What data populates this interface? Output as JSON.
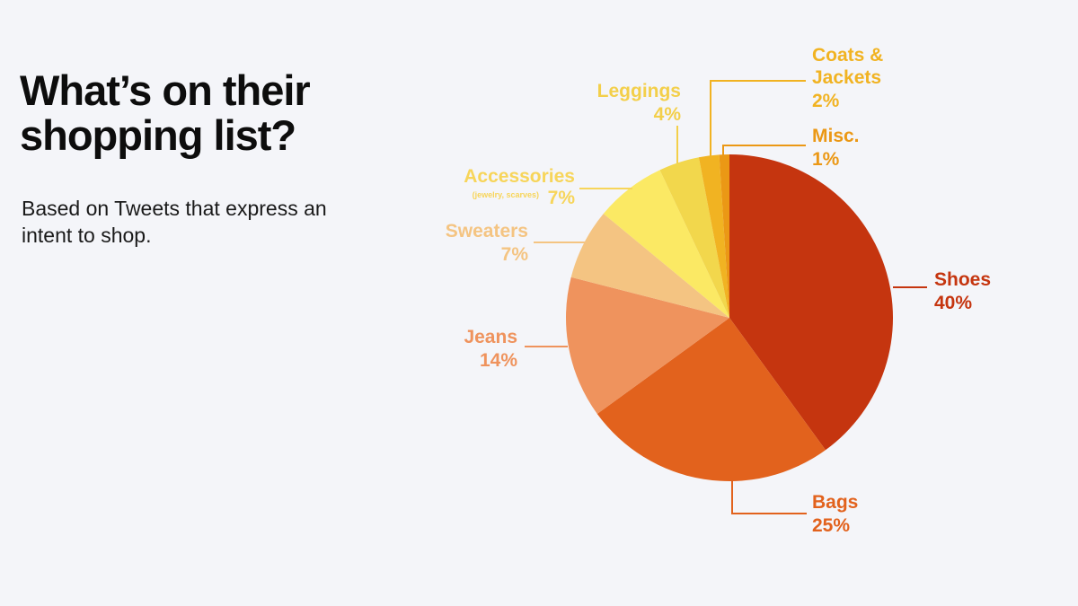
{
  "header": {
    "title": "What’s on their shopping list?",
    "subtitle": "Based on Tweets that express an intent to shop."
  },
  "chart_data": {
    "type": "pie",
    "title": "What’s on their shopping list?",
    "subtitle": "Based on Tweets that express an intent to shop.",
    "slices": [
      {
        "label": "Shoes",
        "value": 40,
        "value_label": "40%",
        "color": "#c5350f"
      },
      {
        "label": "Bags",
        "value": 25,
        "value_label": "25%",
        "color": "#e2621d"
      },
      {
        "label": "Jeans",
        "value": 14,
        "value_label": "14%",
        "color": "#ef935d"
      },
      {
        "label": "Sweaters",
        "value": 7,
        "value_label": "7%",
        "color": "#f4c482"
      },
      {
        "label": "Accessories",
        "note": "(jewelry, scarves)",
        "value": 7,
        "value_label": "7%",
        "color": "#fbe964"
      },
      {
        "label": "Leggings",
        "value": 4,
        "value_label": "4%",
        "color": "#f2d74c"
      },
      {
        "label": "Coats & Jackets",
        "value": 2,
        "value_label": "2%",
        "color": "#f1b322"
      },
      {
        "label": "Misc.",
        "value": 1,
        "value_label": "1%",
        "color": "#eb9815"
      }
    ],
    "label_colors": {
      "Shoes": "#c5350f",
      "Bags": "#e2621d",
      "Jeans": "#ef935d",
      "Sweaters": "#f4c482",
      "Accessories": "#f7d55a",
      "Leggings": "#f3cf4a",
      "Coats & Jackets": "#f1b322",
      "Misc.": "#eb9815"
    }
  }
}
